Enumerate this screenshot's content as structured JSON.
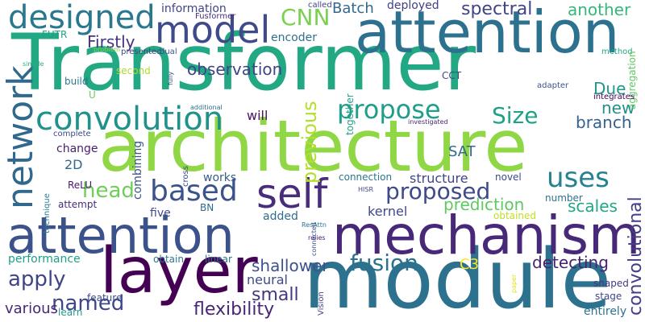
{
  "words": [
    {
      "text": "Transformer",
      "color": "#23a884"
    },
    {
      "text": "architecture",
      "color": "#8fd744"
    },
    {
      "text": "module",
      "color": "#2c718e"
    },
    {
      "text": "attention",
      "color": "#2c718e"
    },
    {
      "text": "attention",
      "color": "#3b528b"
    },
    {
      "text": "mechanism",
      "color": "#482878"
    },
    {
      "text": "layer",
      "color": "#440154"
    },
    {
      "text": "self",
      "color": "#472d7b"
    },
    {
      "text": "network",
      "color": "#31688e"
    },
    {
      "text": "convolution",
      "color": "#21918c"
    },
    {
      "text": "model",
      "color": "#3e4a89"
    },
    {
      "text": "designed",
      "color": "#2a788e"
    },
    {
      "text": "based",
      "color": "#3b528b"
    },
    {
      "text": "uses",
      "color": "#26828e"
    },
    {
      "text": "propose",
      "color": "#1f9e89"
    },
    {
      "text": "proposed",
      "color": "#3e4a89"
    },
    {
      "text": "fusion",
      "color": "#2c728e"
    },
    {
      "text": "head",
      "color": "#6ece58"
    },
    {
      "text": "Size",
      "color": "#1fa187"
    },
    {
      "text": "CNN",
      "color": "#7ad151"
    },
    {
      "text": "apply",
      "color": "#404588"
    },
    {
      "text": "named",
      "color": "#3f4788"
    },
    {
      "text": "convolutional",
      "color": "#433e85"
    },
    {
      "text": "previous",
      "color": "#b5de2b"
    },
    {
      "text": "small",
      "color": "#453781"
    },
    {
      "text": "flexibility",
      "color": "#482576"
    },
    {
      "text": "observation",
      "color": "#404588"
    },
    {
      "text": "spectral",
      "color": "#414487"
    },
    {
      "text": "another",
      "color": "#35b779"
    },
    {
      "text": "Batch",
      "color": "#31688e"
    },
    {
      "text": "Firstly",
      "color": "#46337e"
    },
    {
      "text": "branch",
      "color": "#33638d"
    },
    {
      "text": "new",
      "color": "#218f8d"
    },
    {
      "text": "Due",
      "color": "#1f968b"
    },
    {
      "text": "shallower",
      "color": "#3b528b"
    },
    {
      "text": "detecting",
      "color": "#482173"
    },
    {
      "text": "prediction",
      "color": "#5ec962"
    },
    {
      "text": "scales",
      "color": "#22a785"
    },
    {
      "text": "kernel",
      "color": "#3e4989"
    },
    {
      "text": "structure",
      "color": "#404688"
    },
    {
      "text": "SAT",
      "color": "#31688e"
    },
    {
      "text": "C3",
      "color": "#fde725"
    },
    {
      "text": "performance",
      "color": "#1f9e89"
    },
    {
      "text": "neural",
      "color": "#3f4889"
    },
    {
      "text": "various",
      "color": "#482777"
    },
    {
      "text": "information",
      "color": "#404588"
    },
    {
      "text": "deployed",
      "color": "#433e85"
    },
    {
      "text": "encoder",
      "color": "#2d708e"
    },
    {
      "text": "will",
      "color": "#481467"
    },
    {
      "text": "together",
      "color": "#1fa088"
    },
    {
      "text": "combining",
      "color": "#39558c"
    },
    {
      "text": "change",
      "color": "#482071"
    },
    {
      "text": "2D",
      "color": "#31688e"
    },
    {
      "text": "works",
      "color": "#375a8c"
    },
    {
      "text": "added",
      "color": "#2e6d8e"
    },
    {
      "text": "connection",
      "color": "#2a788e"
    },
    {
      "text": "five",
      "color": "#3e4a89"
    },
    {
      "text": "attempt",
      "color": "#472c7a"
    },
    {
      "text": "obtain",
      "color": "#2a778e"
    },
    {
      "text": "linear",
      "color": "#2d718e"
    },
    {
      "text": "feature",
      "color": "#3e4c8a"
    },
    {
      "text": "learn",
      "color": "#1f9a8a"
    },
    {
      "text": "stage",
      "color": "#404588"
    },
    {
      "text": "shaped",
      "color": "#453882"
    },
    {
      "text": "entirely",
      "color": "#2c738e"
    },
    {
      "text": "number",
      "color": "#2d718e"
    },
    {
      "text": "obtained",
      "color": "#c2df23"
    },
    {
      "text": "build",
      "color": "#2a768e"
    },
    {
      "text": "second",
      "color": "#addc30"
    },
    {
      "text": "FUTR",
      "color": "#1fa088"
    },
    {
      "text": "presented",
      "color": "#414487"
    },
    {
      "text": "Fusformer",
      "color": "#472d7b"
    },
    {
      "text": "called",
      "color": "#404588"
    },
    {
      "text": "problem",
      "color": "#84d44b"
    },
    {
      "text": "dual",
      "color": "#3b528b"
    },
    {
      "text": "simple",
      "color": "#29af7f"
    },
    {
      "text": "method",
      "color": "#22a785"
    },
    {
      "text": "aggregation",
      "color": "#5ec962"
    },
    {
      "text": "adapter",
      "color": "#3b528b"
    },
    {
      "text": "integrates",
      "color": "#440154"
    },
    {
      "text": "investigated",
      "color": "#482878"
    },
    {
      "text": "CCT",
      "color": "#404688"
    },
    {
      "text": "fully",
      "color": "#39568c"
    },
    {
      "text": "additional",
      "color": "#2c728e"
    },
    {
      "text": "cross",
      "color": "#3e4989"
    },
    {
      "text": "HISR",
      "color": "#3e4a89"
    },
    {
      "text": "technique",
      "color": "#2a788e"
    },
    {
      "text": "complete",
      "color": "#3f4788"
    },
    {
      "text": "U",
      "color": "#6ece58"
    },
    {
      "text": "ReLU",
      "color": "#481769"
    },
    {
      "text": "BN",
      "color": "#31688e"
    },
    {
      "text": "ResAttn",
      "color": "#2c728e"
    },
    {
      "text": "relies",
      "color": "#482173"
    },
    {
      "text": "novel",
      "color": "#3e4989"
    },
    {
      "text": "connected",
      "color": "#3b528b"
    },
    {
      "text": "Vision",
      "color": "#404588"
    },
    {
      "text": "paper",
      "color": "#dde318"
    }
  ]
}
